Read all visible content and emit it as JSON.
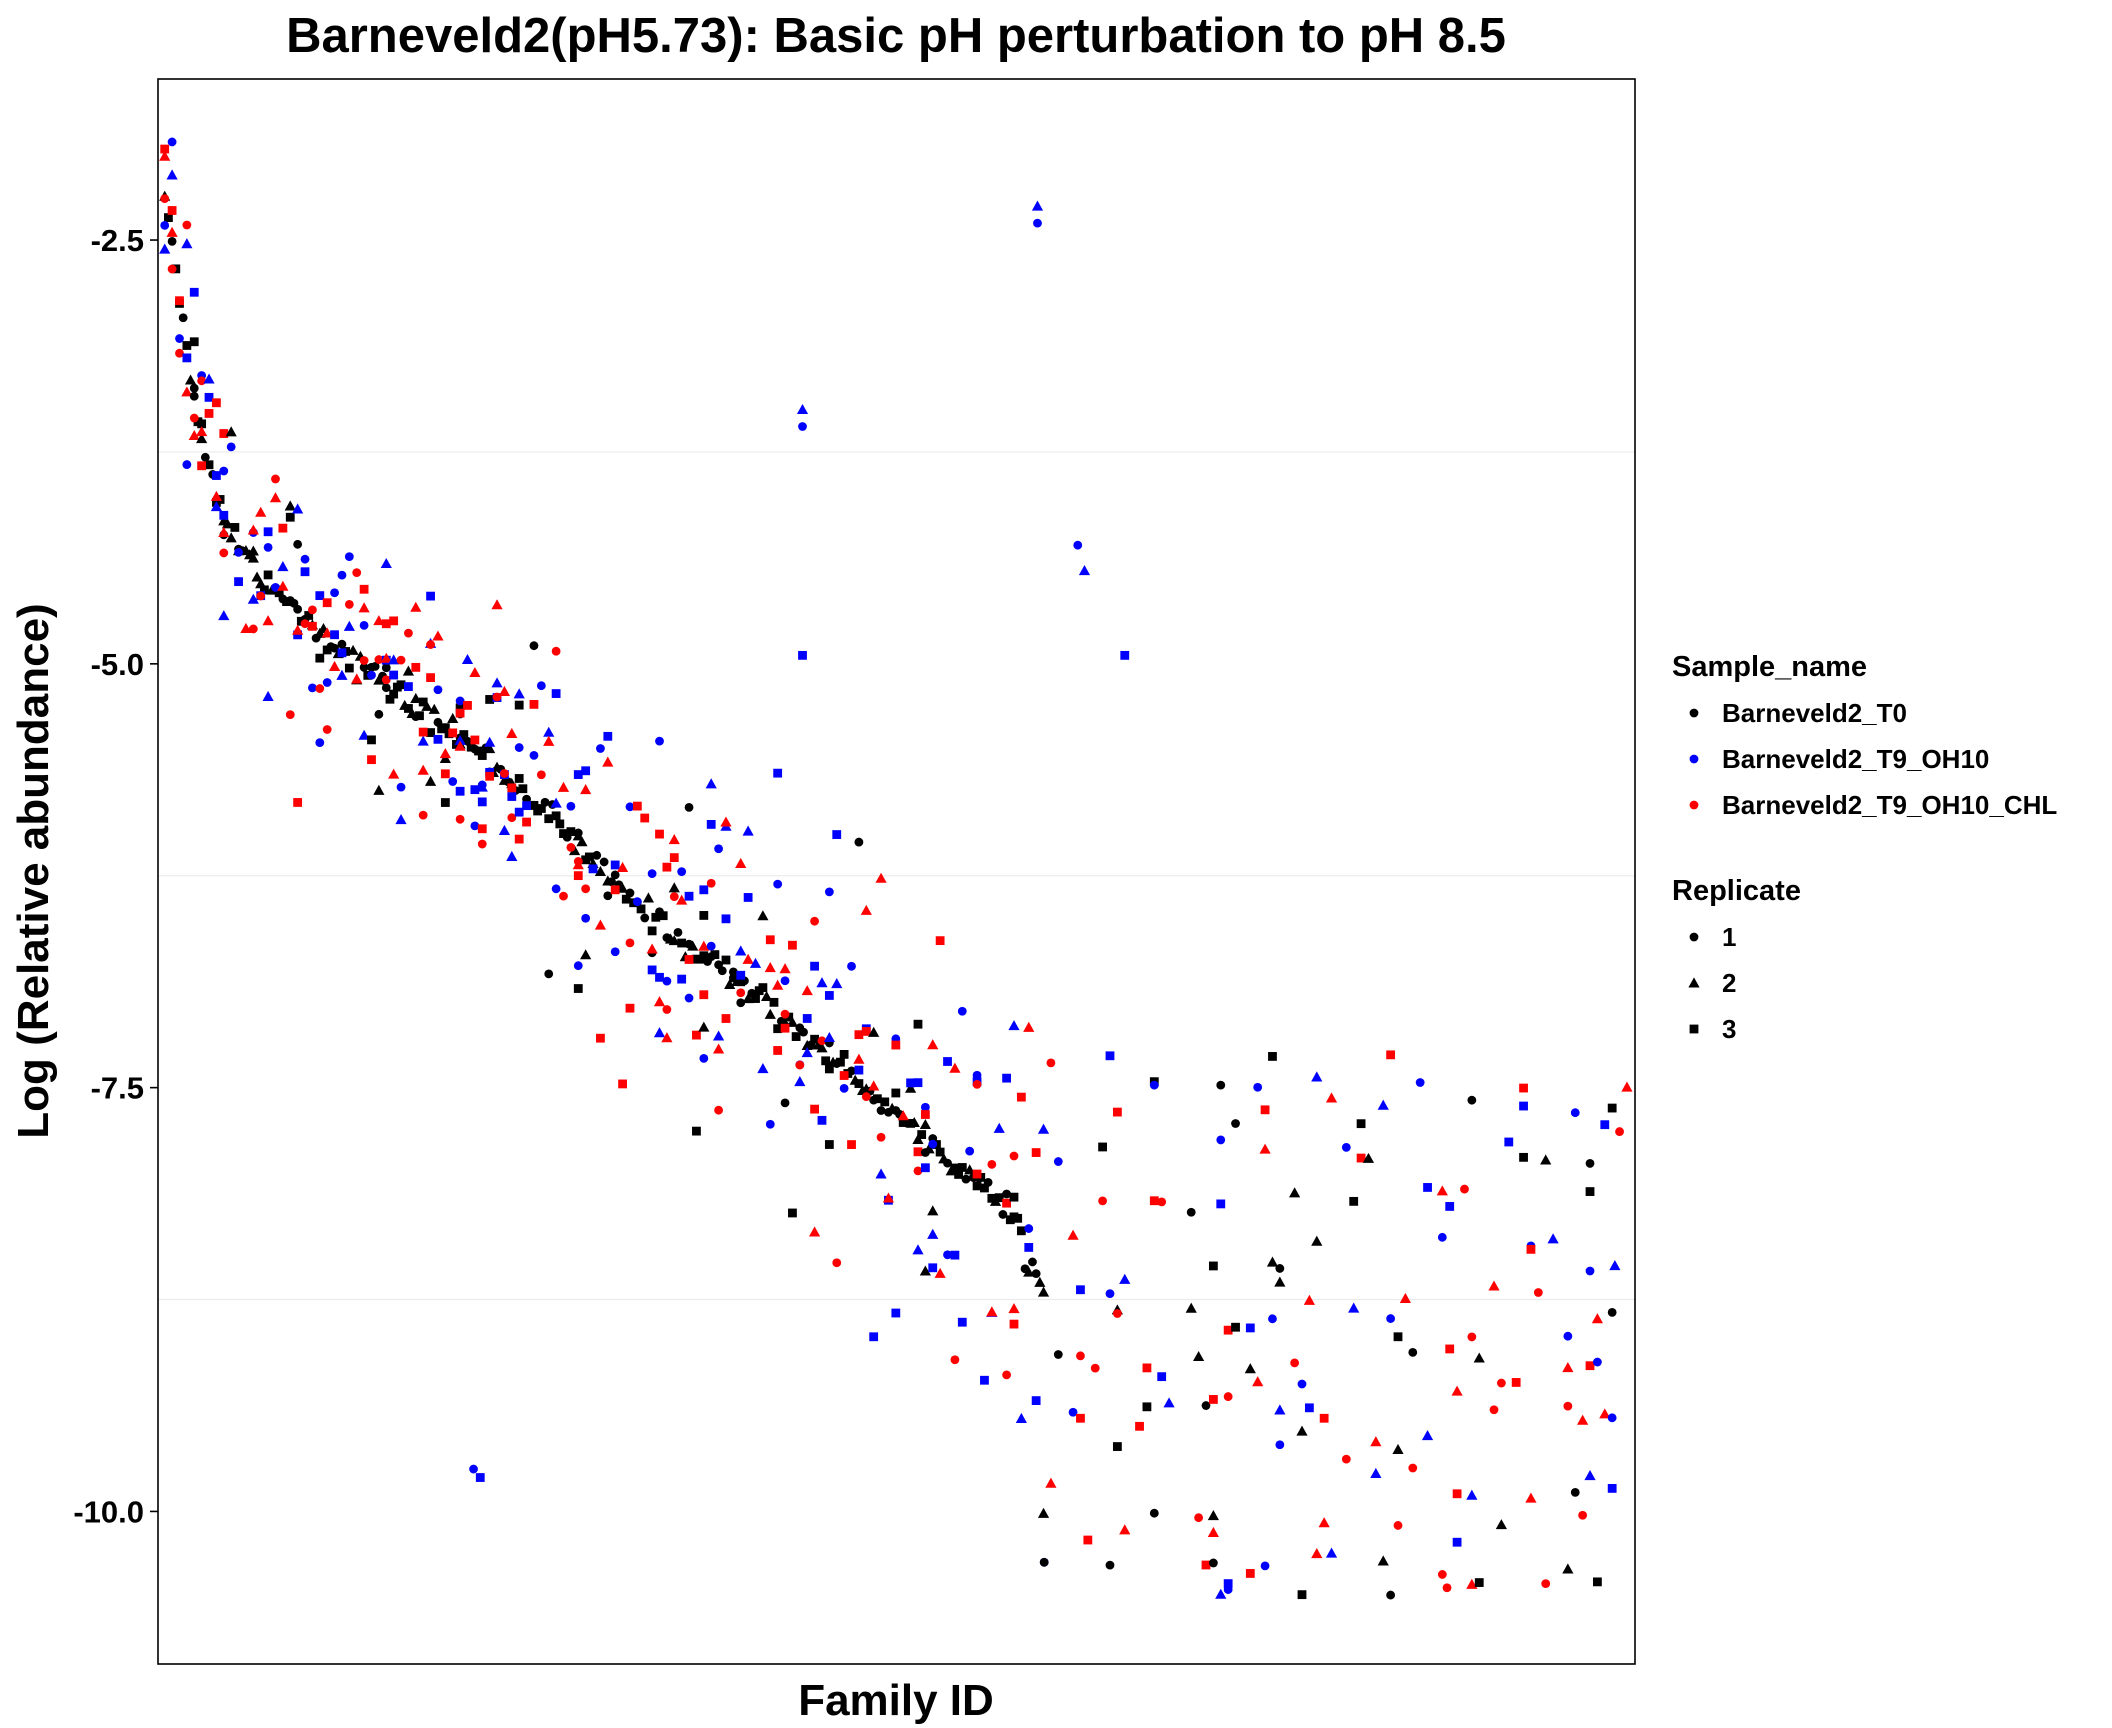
{
  "chart_data": {
    "type": "scatter",
    "title": "Barneveld2(pH5.73): Basic pH perturbation to pH 8.5",
    "xlabel": "Family ID",
    "ylabel": "Log (Relative abundance)",
    "ylim": [
      -10.9,
      -1.55
    ],
    "xlim": [
      0,
      220
    ],
    "y_ticks": [
      -2.5,
      -5.0,
      -7.5,
      -10.0
    ],
    "y_tick_labels": [
      "-2.5",
      "-5.0",
      "-7.5",
      "-10.0"
    ],
    "grid": "horizontal major only",
    "x_tick_labels": "none",
    "legend_position": "right",
    "legends": [
      {
        "title": "Sample_name",
        "entries": [
          {
            "label": "Barneveld2_T0",
            "color": "#000000"
          },
          {
            "label": "Barneveld2_T9_OH10",
            "color": "#0000FF"
          },
          {
            "label": "Barneveld2_T9_OH10_CHL",
            "color": "#FF0000"
          }
        ]
      },
      {
        "title": "Replicate",
        "entries": [
          {
            "label": "1",
            "shape": "circle"
          },
          {
            "label": "2",
            "shape": "triangle"
          },
          {
            "label": "3",
            "shape": "square"
          }
        ]
      }
    ],
    "series_colors": {
      "T0": "#000000",
      "T9_OH10": "#0000FF",
      "T9_OH10_CHL": "#FF0000"
    },
    "series": [
      {
        "sample": "Barneveld2_T0",
        "color": "#000000",
        "replicate_note": "reference ranking series, replicates at identical values",
        "x": [
          1,
          3,
          5,
          8,
          10,
          13,
          16,
          20,
          24,
          28,
          33,
          38,
          44,
          50,
          56,
          62,
          68,
          74,
          80,
          86,
          92,
          98,
          104,
          110,
          116,
          122,
          128,
          132
        ],
        "y": [
          -2.2,
          -2.75,
          -3.35,
          -3.9,
          -4.15,
          -4.35,
          -4.5,
          -4.65,
          -4.8,
          -4.95,
          -5.1,
          -5.25,
          -5.4,
          -5.6,
          -5.8,
          -6.05,
          -6.3,
          -6.5,
          -6.7,
          -6.85,
          -7.05,
          -7.25,
          -7.45,
          -7.65,
          -7.85,
          -8.05,
          -8.3,
          -8.75
        ]
      }
    ],
    "extra_points": [
      {
        "sample": "Barneveld2_T9_OH10",
        "replicate": "1",
        "x": 131,
        "y": -2.4
      },
      {
        "sample": "Barneveld2_T9_OH10",
        "replicate": "2",
        "x": 131,
        "y": -2.3
      },
      {
        "sample": "Barneveld2_T9_OH10",
        "replicate": "1",
        "x": 96,
        "y": -3.6
      },
      {
        "sample": "Barneveld2_T9_OH10",
        "replicate": "2",
        "x": 96,
        "y": -3.5
      },
      {
        "sample": "Barneveld2_T9_OH10",
        "replicate": "1",
        "x": 137,
        "y": -4.3
      },
      {
        "sample": "Barneveld2_T9_OH10",
        "replicate": "2",
        "x": 138,
        "y": -4.45
      },
      {
        "sample": "Barneveld2_T9_OH10",
        "replicate": "3",
        "x": 96,
        "y": -4.95
      },
      {
        "sample": "Barneveld2_T9_OH10",
        "replicate": "3",
        "x": 144,
        "y": -4.95
      },
      {
        "sample": "Barneveld2_T0",
        "replicate": "3",
        "x": 220,
        "y": -9.0
      },
      {
        "sample": "Barneveld2_T9_OH10",
        "replicate": "2",
        "x": 217,
        "y": -8.55
      },
      {
        "sample": "Barneveld2_T9_OH10",
        "replicate": "1",
        "x": 132,
        "y": -10.3
      },
      {
        "sample": "Barneveld2_T0",
        "replicate": "1",
        "x": 132,
        "y": -10.3
      },
      {
        "sample": "Barneveld2_T9_OH10_CHL",
        "replicate": "1",
        "x": 192,
        "y": -10.45
      },
      {
        "sample": "Barneveld2_T9_OH10",
        "replicate": "1",
        "x": 47,
        "y": -9.75
      },
      {
        "sample": "Barneveld2_T9_OH10",
        "replicate": "3",
        "x": 48,
        "y": -9.8
      }
    ],
    "scatter_note": "Roughly 1300 additional points (3 samples x 3 replicates) scatter around the T0 ranking curve with spread increasing to the right; generated in the script as approximations."
  }
}
